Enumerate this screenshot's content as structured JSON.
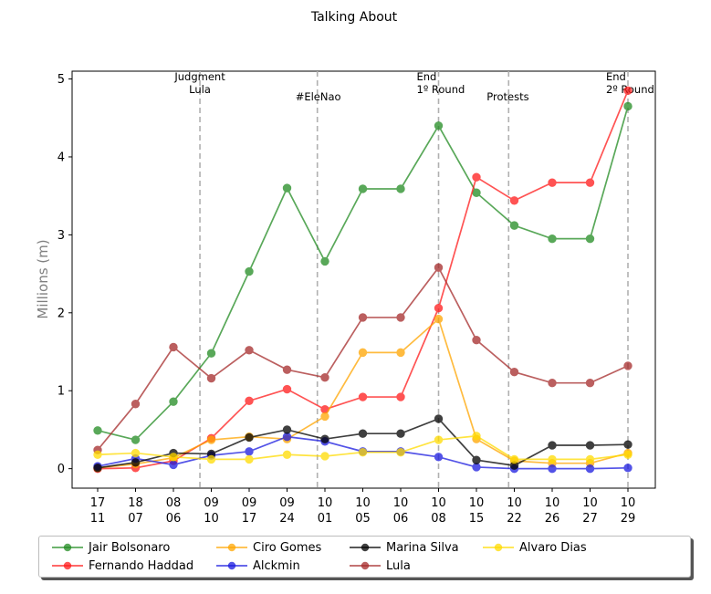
{
  "chart_data": {
    "type": "line",
    "title": "Talking About",
    "ylabel": "Millions (m)",
    "xlabel": "",
    "ylim": [
      -0.25,
      5.1
    ],
    "yticks": [
      0,
      1,
      2,
      3,
      4,
      5
    ],
    "grid": false,
    "legend_position": "bottom",
    "categories": [
      [
        "17",
        "11"
      ],
      [
        "18",
        "07"
      ],
      [
        "08",
        "06"
      ],
      [
        "09",
        "10"
      ],
      [
        "09",
        "17"
      ],
      [
        "09",
        "24"
      ],
      [
        "10",
        "01"
      ],
      [
        "10",
        "05"
      ],
      [
        "10",
        "06"
      ],
      [
        "10",
        "08"
      ],
      [
        "10",
        "15"
      ],
      [
        "10",
        "22"
      ],
      [
        "10",
        "26"
      ],
      [
        "10",
        "27"
      ],
      [
        "10",
        "29"
      ]
    ],
    "annotations": [
      {
        "x_index": 2.7,
        "lines": [
          "Judgment",
          "Lula"
        ],
        "text_align": "middle"
      },
      {
        "x_index": 5.8,
        "lines": [
          "#EleNao"
        ],
        "text_align": "start"
      },
      {
        "x_index": 9.0,
        "lines": [
          "End",
          "1º Round"
        ],
        "text_align": "end-ish"
      },
      {
        "x_index": 10.85,
        "lines": [
          "Protests"
        ],
        "text_align": "start"
      },
      {
        "x_index": 14.0,
        "lines": [
          "End",
          "2º Round"
        ],
        "text_align": "end-ish"
      }
    ],
    "series": [
      {
        "name": "Jair Bolsonaro",
        "color": "#228b22",
        "values": [
          0.49,
          0.37,
          0.86,
          1.48,
          2.53,
          3.6,
          2.66,
          3.59,
          3.59,
          4.4,
          3.54,
          3.12,
          2.95,
          2.95,
          4.65
        ]
      },
      {
        "name": "Fernando Haddad",
        "color": "#ff1a1a",
        "values": [
          0.0,
          0.01,
          0.1,
          0.39,
          0.87,
          1.02,
          0.76,
          0.92,
          0.92,
          2.06,
          3.74,
          3.44,
          3.67,
          3.67,
          4.85
        ]
      },
      {
        "name": "Ciro Gomes",
        "color": "#ffa500",
        "values": [
          0.01,
          0.06,
          0.14,
          0.37,
          0.41,
          0.38,
          0.67,
          1.49,
          1.49,
          1.92,
          0.38,
          0.1,
          0.07,
          0.07,
          0.2
        ]
      },
      {
        "name": "Alckmin",
        "color": "#1a1adf",
        "values": [
          0.03,
          0.13,
          0.05,
          0.17,
          0.22,
          0.41,
          0.35,
          0.22,
          0.22,
          0.15,
          0.02,
          0.0,
          0.0,
          0.0,
          0.01
        ]
      },
      {
        "name": "Marina Silva",
        "color": "#000000",
        "values": [
          0.01,
          0.08,
          0.2,
          0.19,
          0.4,
          0.5,
          0.38,
          0.45,
          0.45,
          0.64,
          0.11,
          0.04,
          0.3,
          0.3,
          0.31
        ]
      },
      {
        "name": "Lula",
        "color": "#a52a2a",
        "values": [
          0.24,
          0.83,
          1.56,
          1.16,
          1.52,
          1.27,
          1.17,
          1.94,
          1.94,
          2.58,
          1.65,
          1.24,
          1.1,
          1.1,
          1.32
        ]
      },
      {
        "name": "Alvaro Dias",
        "color": "#ffdb00",
        "values": [
          0.18,
          0.2,
          0.15,
          0.12,
          0.12,
          0.18,
          0.16,
          0.21,
          0.21,
          0.37,
          0.42,
          0.12,
          0.12,
          0.12,
          0.18
        ]
      }
    ]
  }
}
